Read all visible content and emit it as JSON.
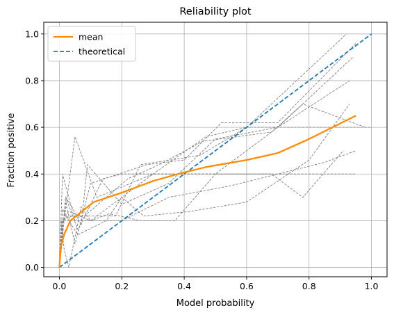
{
  "chart_data": {
    "type": "line",
    "title": "Reliability plot",
    "xlabel": "Model probability",
    "ylabel": "Fraction positive",
    "xlim": [
      -0.05,
      1.05
    ],
    "ylim": [
      -0.04,
      1.05
    ],
    "xticks": [
      0.0,
      0.2,
      0.4,
      0.6,
      0.8,
      1.0
    ],
    "yticks": [
      0.0,
      0.2,
      0.4,
      0.6,
      0.8,
      1.0
    ],
    "xtick_labels": [
      "0.0",
      "0.2",
      "0.4",
      "0.6",
      "0.8",
      "1.0"
    ],
    "ytick_labels": [
      "0.0",
      "0.2",
      "0.4",
      "0.6",
      "0.8",
      "1.0"
    ],
    "grid": true,
    "legend_position": "top-left",
    "series": [
      {
        "name": "mean",
        "color": "#ff8c00",
        "style": "solid",
        "x": [
          0.0,
          0.005,
          0.015,
          0.035,
          0.11,
          0.2,
          0.3,
          0.38,
          0.47,
          0.6,
          0.7,
          0.8,
          0.95
        ],
        "y": [
          0.0,
          0.09,
          0.14,
          0.2,
          0.28,
          0.32,
          0.37,
          0.4,
          0.43,
          0.46,
          0.49,
          0.55,
          0.65
        ]
      },
      {
        "name": "theoretical",
        "color": "#1f77b4",
        "style": "dashed",
        "x": [
          0.0,
          1.0
        ],
        "y": [
          0.0,
          1.0
        ]
      }
    ],
    "background_lines": {
      "color": "#808080",
      "style": "dashed",
      "lines": [
        {
          "x": [
            0.0,
            0.01,
            0.04,
            0.18,
            0.26,
            0.45,
            0.6,
            0.92
          ],
          "y": [
            0.0,
            0.2,
            0.22,
            0.22,
            0.44,
            0.48,
            0.6,
            1.0
          ]
        },
        {
          "x": [
            0.0,
            0.005,
            0.02,
            0.05,
            0.12,
            0.3,
            0.5,
            0.7,
            0.94
          ],
          "y": [
            0.0,
            0.1,
            0.25,
            0.56,
            0.3,
            0.4,
            0.4,
            0.6,
            0.9
          ]
        },
        {
          "x": [
            0.0,
            0.01,
            0.03,
            0.06,
            0.15,
            0.2,
            0.27,
            0.42,
            0.6,
            0.8,
            0.93
          ],
          "y": [
            0.0,
            0.25,
            0.2,
            0.14,
            0.2,
            0.3,
            0.22,
            0.24,
            0.28,
            0.46,
            0.7
          ]
        },
        {
          "x": [
            0.0,
            0.01,
            0.02,
            0.04,
            0.07,
            0.09,
            0.2,
            0.35,
            0.5,
            0.7,
            0.93
          ],
          "y": [
            0.0,
            0.12,
            0.3,
            0.26,
            0.18,
            0.44,
            0.27,
            0.36,
            0.55,
            0.6,
            0.8
          ]
        },
        {
          "x": [
            0.0,
            0.005,
            0.015,
            0.03,
            0.07,
            0.1,
            0.3,
            0.47,
            0.6,
            0.9,
            1.0
          ],
          "y": [
            0.0,
            0.2,
            0.08,
            0.0,
            0.26,
            0.2,
            0.4,
            0.56,
            0.6,
            0.6,
            0.6
          ]
        },
        {
          "x": [
            0.0,
            0.01,
            0.03,
            0.1,
            0.16,
            0.26,
            0.37,
            0.5,
            0.68,
            0.78,
            0.91
          ],
          "y": [
            0.0,
            0.2,
            0.24,
            0.2,
            0.23,
            0.2,
            0.2,
            0.4,
            0.4,
            0.3,
            0.5
          ]
        },
        {
          "x": [
            0.0,
            0.01,
            0.05,
            0.2,
            0.35,
            0.55,
            0.7,
            0.85,
            0.95
          ],
          "y": [
            0.0,
            0.4,
            0.2,
            0.2,
            0.3,
            0.35,
            0.4,
            0.45,
            0.5
          ]
        },
        {
          "x": [
            0.0,
            0.02,
            0.06,
            0.14,
            0.2,
            0.3,
            0.4,
            0.6,
            0.8,
            0.95
          ],
          "y": [
            0.0,
            0.3,
            0.16,
            0.38,
            0.4,
            0.4,
            0.4,
            0.4,
            0.4,
            0.4
          ]
        },
        {
          "x": [
            0.0,
            0.01,
            0.03,
            0.08,
            0.22,
            0.32,
            0.46,
            0.68,
            0.78,
            0.98
          ],
          "y": [
            0.0,
            0.2,
            0.22,
            0.22,
            0.38,
            0.44,
            0.54,
            0.58,
            0.7,
            0.6
          ]
        },
        {
          "x": [
            0.0,
            0.01,
            0.02,
            0.05,
            0.1,
            0.28,
            0.4,
            0.52,
            0.7,
            0.95
          ],
          "y": [
            0.0,
            0.16,
            0.28,
            0.1,
            0.36,
            0.44,
            0.46,
            0.62,
            0.62,
            0.96
          ]
        }
      ]
    },
    "legend": [
      {
        "label": "mean",
        "color": "#ff8c00",
        "style": "solid"
      },
      {
        "label": "theoretical",
        "color": "#1f77b4",
        "style": "dashed"
      }
    ]
  }
}
